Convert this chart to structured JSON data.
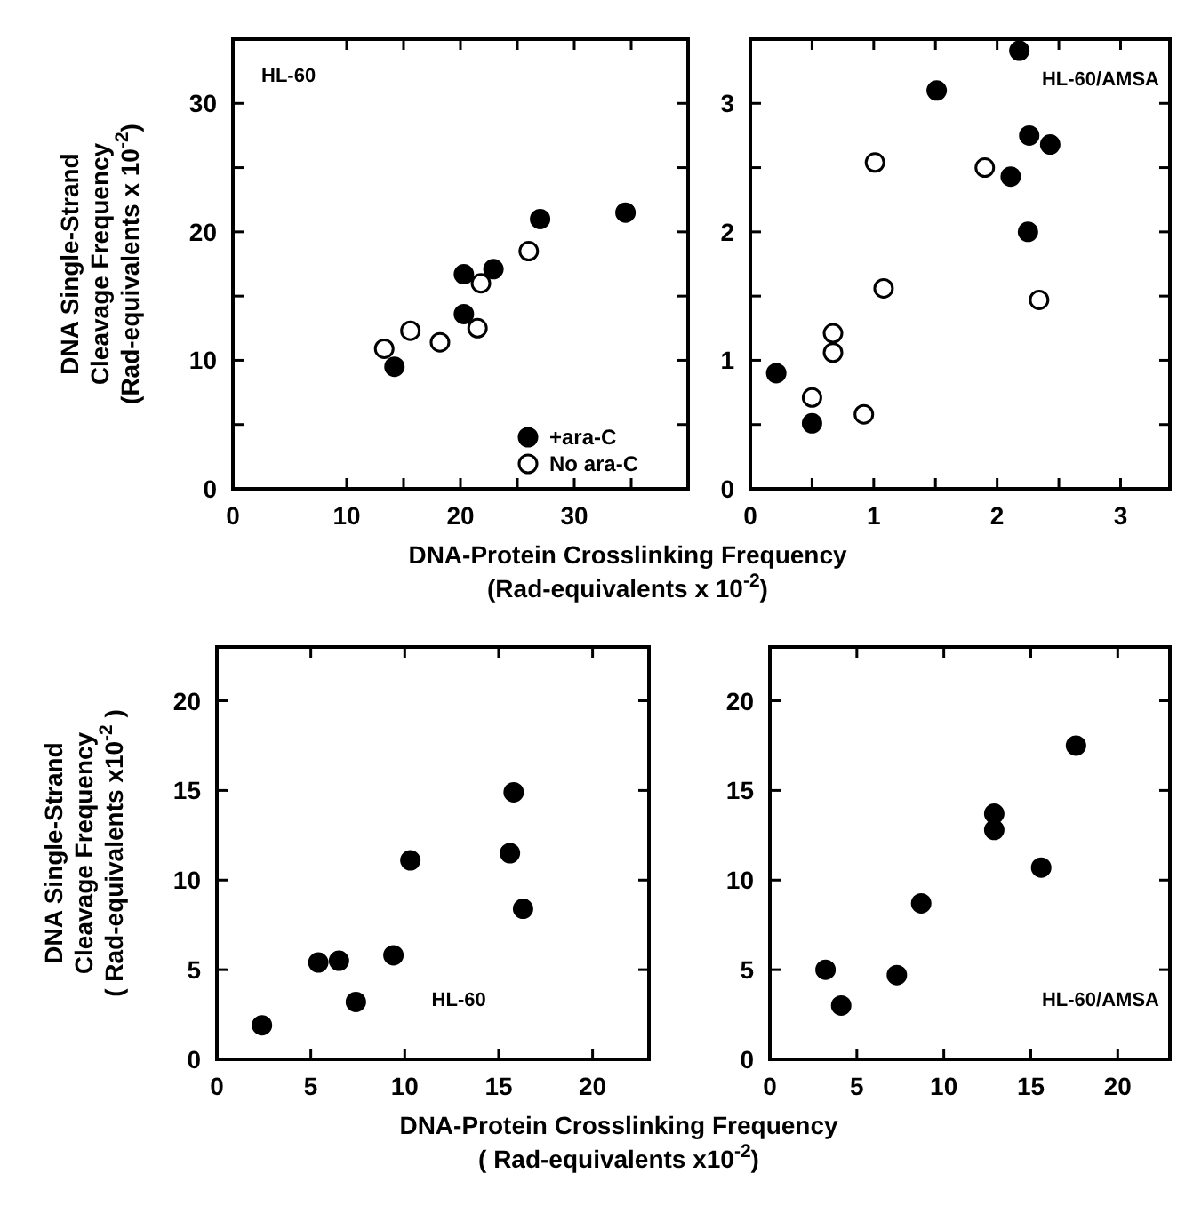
{
  "chart_data": [
    {
      "type": "scatter",
      "xlabel": "DNA-Protein Crosslinking Frequency\n(Rad-equivalents x 10$^{-2}$)",
      "ylabel": "DNA Single-Strand\nCleavage Frequency\n(Rad-equivalents x 10$^{-2}$)",
      "annotations": [
        "HL-60"
      ],
      "legend": "bottom right",
      "marker": "circle",
      "xlim": [
        0,
        40
      ],
      "ylim": [
        0,
        35
      ],
      "xticks": [
        0,
        10,
        {
          "value": 15,
          "label": null
        },
        20,
        {
          "value": 25,
          "label": null
        },
        30,
        {
          "value": 35,
          "label": null
        }
      ],
      "yticks": [
        0,
        {
          "value": 5,
          "label": null
        },
        10,
        {
          "value": 15,
          "label": null
        },
        20,
        {
          "value": 25,
          "label": null
        },
        30
      ],
      "series": [
        {
          "name": "+ara-C",
          "color": "#000000",
          "x": [
            14.2,
            20.3,
            20.3,
            22.9,
            27.0,
            34.5
          ],
          "values": [
            9.5,
            16.7,
            13.6,
            17.1,
            21.0,
            21.5
          ]
        },
        {
          "name": "No ara-C",
          "color": "#ffffff",
          "x": [
            13.3,
            15.6,
            18.2,
            21.5,
            21.8,
            26.0
          ],
          "values": [
            10.9,
            12.3,
            11.4,
            12.5,
            16.0,
            18.5
          ]
        }
      ]
    },
    {
      "type": "scatter",
      "annotations": [
        "HL-60/AMSA"
      ],
      "marker": "circle",
      "xlim": [
        0,
        3.4
      ],
      "ylim": [
        0,
        3.5
      ],
      "xticks": [
        0,
        {
          "value": 0.5,
          "label": null
        },
        1,
        {
          "value": 1.5,
          "label": null
        },
        2,
        {
          "value": 2.5,
          "label": null
        },
        3
      ],
      "yticks": [
        0,
        {
          "value": 0.5,
          "label": null
        },
        1,
        {
          "value": 1.5,
          "label": null
        },
        2,
        {
          "value": 2.5,
          "label": null
        },
        3
      ],
      "series": [
        {
          "color": "#000000",
          "x": [
            0.21,
            0.5,
            1.51,
            2.18,
            2.26,
            2.43,
            2.11,
            2.25
          ],
          "values": [
            0.9,
            0.51,
            3.1,
            3.41,
            2.75,
            2.68,
            2.43,
            2.0
          ]
        },
        {
          "color": "#ffffff",
          "x": [
            1.01,
            1.08,
            0.67,
            0.67,
            0.5,
            0.92,
            1.9,
            2.34
          ],
          "values": [
            2.54,
            1.56,
            1.21,
            1.06,
            0.71,
            0.58,
            2.5,
            1.47
          ]
        }
      ]
    },
    {
      "type": "scatter",
      "xlabel": "DNA-Protein Crosslinking Frequency\n( Rad-equivalents x10$^{-2}$)",
      "ylabel": "DNA Single-Strand\nCleavage Frequency\n( Rad-equivalents x10$^{-2}$ )",
      "annotations": [
        "HL-60"
      ],
      "marker": "circle",
      "xlim": [
        0,
        23
      ],
      "ylim": [
        0,
        23
      ],
      "xticks": [
        0,
        5,
        10,
        15,
        20
      ],
      "yticks": [
        0,
        5,
        10,
        15,
        20
      ],
      "series": [
        {
          "color": "#000000",
          "x": [
            2.4,
            5.4,
            6.5,
            7.4,
            9.4,
            10.3,
            15.8,
            15.6,
            16.3
          ],
          "values": [
            1.9,
            5.4,
            5.5,
            3.2,
            5.8,
            11.1,
            14.9,
            11.5,
            8.4
          ]
        }
      ]
    },
    {
      "type": "scatter",
      "annotations": [
        "HL-60/AMSA"
      ],
      "marker": "circle",
      "xlim": [
        0,
        23
      ],
      "ylim": [
        0,
        23
      ],
      "xticks": [
        0,
        5,
        10,
        15,
        20
      ],
      "yticks": [
        0,
        5,
        10,
        15,
        20
      ],
      "series": [
        {
          "color": "#000000",
          "x": [
            3.2,
            4.1,
            7.3,
            8.7,
            12.9,
            12.9,
            15.6,
            17.6
          ],
          "values": [
            5.0,
            3.0,
            4.7,
            8.7,
            13.7,
            12.8,
            10.7,
            17.5
          ]
        }
      ]
    }
  ]
}
